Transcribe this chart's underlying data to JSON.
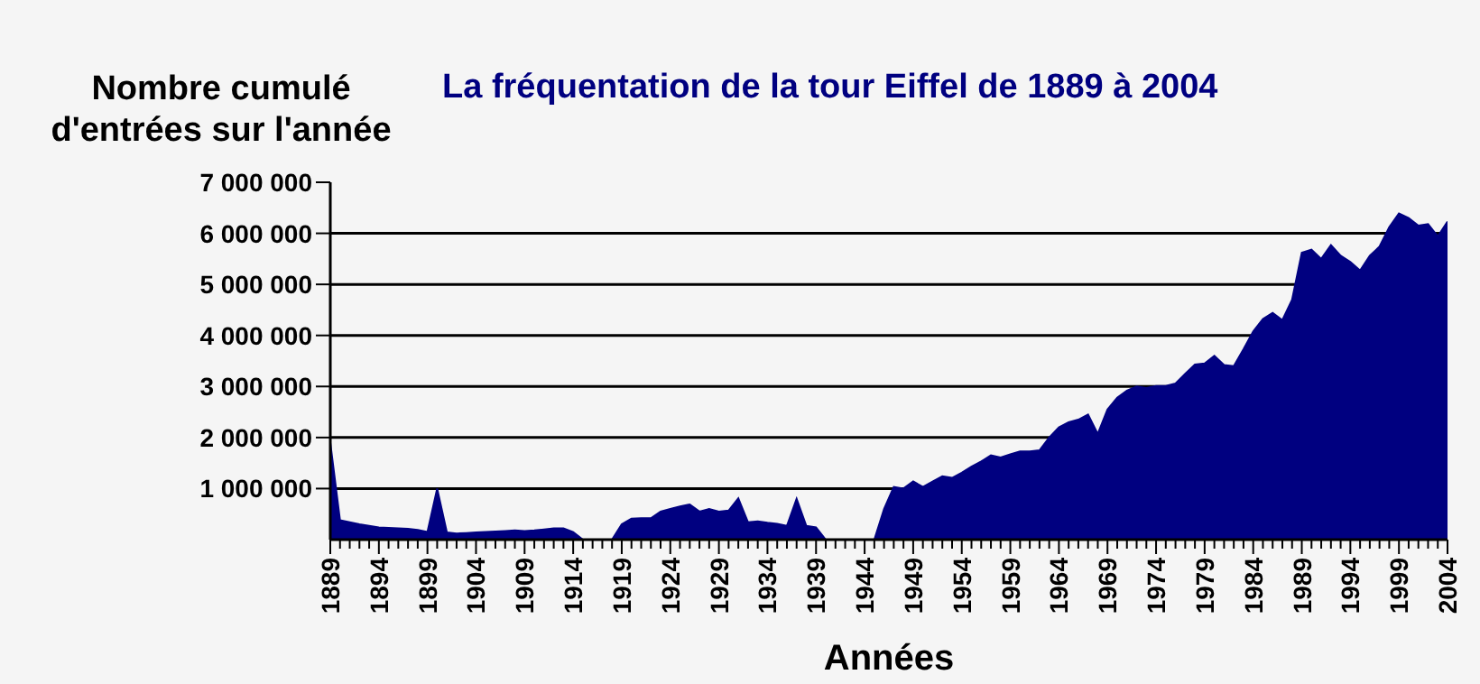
{
  "chart_data": {
    "type": "area",
    "title": "La fréquentation de la tour Eiffel de 1889 à 2004",
    "xlabel": "Années",
    "ylabel": "Nombre cumulé d'entrées sur l'année",
    "x": [
      1889,
      1890,
      1891,
      1892,
      1893,
      1894,
      1895,
      1896,
      1897,
      1898,
      1899,
      1900,
      1901,
      1902,
      1903,
      1904,
      1905,
      1906,
      1907,
      1908,
      1909,
      1910,
      1911,
      1912,
      1913,
      1914,
      1915,
      1916,
      1917,
      1918,
      1919,
      1920,
      1921,
      1922,
      1923,
      1924,
      1925,
      1926,
      1927,
      1928,
      1929,
      1930,
      1931,
      1932,
      1933,
      1934,
      1935,
      1936,
      1937,
      1938,
      1939,
      1940,
      1941,
      1942,
      1943,
      1944,
      1945,
      1946,
      1947,
      1948,
      1949,
      1950,
      1951,
      1952,
      1953,
      1954,
      1955,
      1956,
      1957,
      1958,
      1959,
      1960,
      1961,
      1962,
      1963,
      1964,
      1965,
      1966,
      1967,
      1968,
      1969,
      1970,
      1971,
      1972,
      1973,
      1974,
      1975,
      1976,
      1977,
      1978,
      1979,
      1980,
      1981,
      1982,
      1983,
      1984,
      1985,
      1986,
      1987,
      1988,
      1989,
      1990,
      1991,
      1992,
      1993,
      1994,
      1995,
      1996,
      1997,
      1998,
      1999,
      2000,
      2001,
      2002,
      2003,
      2004
    ],
    "series": [
      {
        "color": "#000080",
        "values": [
          1900000,
          380000,
          340000,
          300000,
          270000,
          240000,
          230000,
          220000,
          210000,
          190000,
          150000,
          1000000,
          140000,
          120000,
          130000,
          140000,
          150000,
          160000,
          170000,
          180000,
          170000,
          180000,
          200000,
          220000,
          220000,
          150000,
          0,
          0,
          0,
          0,
          300000,
          410000,
          420000,
          420000,
          550000,
          600000,
          650000,
          690000,
          550000,
          600000,
          550000,
          570000,
          810000,
          340000,
          360000,
          330000,
          310000,
          270000,
          800000,
          270000,
          240000,
          0,
          0,
          0,
          0,
          0,
          0,
          600000,
          1030000,
          1000000,
          1140000,
          1030000,
          1140000,
          1240000,
          1210000,
          1310000,
          1430000,
          1530000,
          1650000,
          1610000,
          1670000,
          1730000,
          1730000,
          1750000,
          2000000,
          2200000,
          2300000,
          2350000,
          2450000,
          2070000,
          2550000,
          2780000,
          2920000,
          3000000,
          2970000,
          3010000,
          3010000,
          3060000,
          3250000,
          3430000,
          3450000,
          3600000,
          3420000,
          3400000,
          3730000,
          4080000,
          4320000,
          4440000,
          4300000,
          4700000,
          5620000,
          5680000,
          5500000,
          5770000,
          5560000,
          5440000,
          5270000,
          5560000,
          5740000,
          6120000,
          6390000,
          6300000,
          6150000,
          6180000,
          5940000,
          6230000
        ]
      }
    ],
    "xlim": [
      1889,
      2004
    ],
    "xticks": [
      1889,
      {
        "value": 1890,
        "label": null
      },
      {
        "value": 1891,
        "label": null
      },
      {
        "value": 1892,
        "label": null
      },
      {
        "value": 1893,
        "label": null
      },
      1894,
      {
        "value": 1895,
        "label": null
      },
      {
        "value": 1896,
        "label": null
      },
      {
        "value": 1897,
        "label": null
      },
      {
        "value": 1898,
        "label": null
      },
      1899,
      {
        "value": 1900,
        "label": null
      },
      {
        "value": 1901,
        "label": null
      },
      {
        "value": 1902,
        "label": null
      },
      {
        "value": 1903,
        "label": null
      },
      1904,
      {
        "value": 1905,
        "label": null
      },
      {
        "value": 1906,
        "label": null
      },
      {
        "value": 1907,
        "label": null
      },
      {
        "value": 1908,
        "label": null
      },
      1909,
      {
        "value": 1910,
        "label": null
      },
      {
        "value": 1911,
        "label": null
      },
      {
        "value": 1912,
        "label": null
      },
      {
        "value": 1913,
        "label": null
      },
      1914,
      {
        "value": 1915,
        "label": null
      },
      {
        "value": 1916,
        "label": null
      },
      {
        "value": 1917,
        "label": null
      },
      {
        "value": 1918,
        "label": null
      },
      1919,
      {
        "value": 1920,
        "label": null
      },
      {
        "value": 1921,
        "label": null
      },
      {
        "value": 1922,
        "label": null
      },
      {
        "value": 1923,
        "label": null
      },
      1924,
      {
        "value": 1925,
        "label": null
      },
      {
        "value": 1926,
        "label": null
      },
      {
        "value": 1927,
        "label": null
      },
      {
        "value": 1928,
        "label": null
      },
      1929,
      {
        "value": 1930,
        "label": null
      },
      {
        "value": 1931,
        "label": null
      },
      {
        "value": 1932,
        "label": null
      },
      {
        "value": 1933,
        "label": null
      },
      1934,
      {
        "value": 1935,
        "label": null
      },
      {
        "value": 1936,
        "label": null
      },
      {
        "value": 1937,
        "label": null
      },
      {
        "value": 1938,
        "label": null
      },
      1939,
      {
        "value": 1940,
        "label": null
      },
      {
        "value": 1941,
        "label": null
      },
      {
        "value": 1942,
        "label": null
      },
      {
        "value": 1943,
        "label": null
      },
      1944,
      {
        "value": 1945,
        "label": null
      },
      {
        "value": 1946,
        "label": null
      },
      {
        "value": 1947,
        "label": null
      },
      {
        "value": 1948,
        "label": null
      },
      1949,
      {
        "value": 1950,
        "label": null
      },
      {
        "value": 1951,
        "label": null
      },
      {
        "value": 1952,
        "label": null
      },
      {
        "value": 1953,
        "label": null
      },
      1954,
      {
        "value": 1955,
        "label": null
      },
      {
        "value": 1956,
        "label": null
      },
      {
        "value": 1957,
        "label": null
      },
      {
        "value": 1958,
        "label": null
      },
      1959,
      {
        "value": 1960,
        "label": null
      },
      {
        "value": 1961,
        "label": null
      },
      {
        "value": 1962,
        "label": null
      },
      {
        "value": 1963,
        "label": null
      },
      1964,
      {
        "value": 1965,
        "label": null
      },
      {
        "value": 1966,
        "label": null
      },
      {
        "value": 1967,
        "label": null
      },
      {
        "value": 1968,
        "label": null
      },
      1969,
      {
        "value": 1970,
        "label": null
      },
      {
        "value": 1971,
        "label": null
      },
      {
        "value": 1972,
        "label": null
      },
      {
        "value": 1973,
        "label": null
      },
      1974,
      {
        "value": 1975,
        "label": null
      },
      {
        "value": 1976,
        "label": null
      },
      {
        "value": 1977,
        "label": null
      },
      {
        "value": 1978,
        "label": null
      },
      1979,
      {
        "value": 1980,
        "label": null
      },
      {
        "value": 1981,
        "label": null
      },
      {
        "value": 1982,
        "label": null
      },
      {
        "value": 1983,
        "label": null
      },
      1984,
      {
        "value": 1985,
        "label": null
      },
      {
        "value": 1986,
        "label": null
      },
      {
        "value": 1987,
        "label": null
      },
      {
        "value": 1988,
        "label": null
      },
      1989,
      {
        "value": 1990,
        "label": null
      },
      {
        "value": 1991,
        "label": null
      },
      {
        "value": 1992,
        "label": null
      },
      {
        "value": 1993,
        "label": null
      },
      1994,
      {
        "value": 1995,
        "label": null
      },
      {
        "value": 1996,
        "label": null
      },
      {
        "value": 1997,
        "label": null
      },
      {
        "value": 1998,
        "label": null
      },
      1999,
      {
        "value": 2000,
        "label": null
      },
      {
        "value": 2001,
        "label": null
      },
      {
        "value": 2002,
        "label": null
      },
      {
        "value": 2003,
        "label": null
      },
      2004
    ],
    "ylim": [
      0,
      7000000
    ],
    "yticks": [
      {
        "value": 1000000,
        "label": "1 000 000"
      },
      {
        "value": 2000000,
        "label": "2 000 000"
      },
      {
        "value": 3000000,
        "label": "3 000 000"
      },
      {
        "value": 4000000,
        "label": "4 000 000"
      },
      {
        "value": 5000000,
        "label": "5 000 000"
      },
      {
        "value": 6000000,
        "label": "6 000 000"
      },
      {
        "value": 7000000,
        "label": "7 000 000"
      }
    ],
    "grid": "y",
    "legend": false
  }
}
